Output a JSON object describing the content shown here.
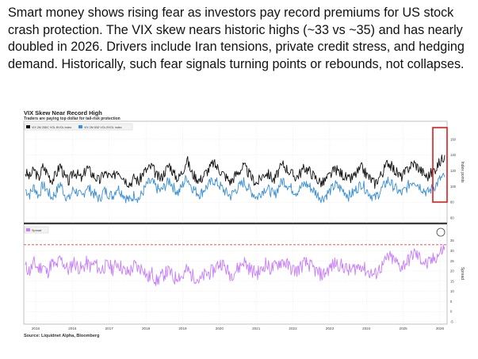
{
  "caption": "Smart money shows rising fear as investors pay record premiums for US stock crash protection. The VIX skew nears historic highs (~33 vs ~35) and has nearly doubled in 2026. Drivers include Iran tensions, private credit stress, and hedging demand. Historically, such fear signals turning points or rebounds, not collapses.",
  "chart_data": {
    "type": "line",
    "title": "VIX Skew Near Record High",
    "subtitle": "Traders are paying top dollar for tail-risk protection",
    "source": "Source: Liquidnet Alpha, Bloomberg",
    "x_ticks": [
      "2015",
      "2016",
      "2017",
      "2018",
      "2019",
      "2020",
      "2021",
      "2022",
      "2023",
      "2024",
      "2025",
      "2026"
    ],
    "top_panel": {
      "ylabel": "Index points",
      "ylim": [
        55,
        170
      ],
      "y_ticks": [
        "160",
        "140",
        "120",
        "100",
        "80",
        "60"
      ],
      "series": [
        {
          "name": "VIX 2M 25DC VOL BVOL Index",
          "color": "#111111",
          "values": [
            118,
            112,
            122,
            110,
            125,
            118,
            108,
            115,
            128,
            112,
            106,
            120,
            115,
            109,
            125,
            118,
            112,
            107,
            118,
            114,
            110,
            122,
            116,
            108,
            104,
            112,
            106,
            118,
            122,
            126,
            114,
            110,
            120,
            128,
            116,
            110,
            120,
            135,
            118,
            112,
            108,
            116,
            122,
            130,
            124,
            118,
            112,
            106,
            114,
            120,
            126,
            118,
            110,
            104,
            112,
            118,
            114,
            108,
            120,
            128,
            122,
            116,
            112,
            118,
            124,
            120,
            114,
            108,
            104,
            110,
            116,
            122,
            118,
            114,
            108,
            112,
            118,
            124,
            116,
            110,
            104,
            112,
            120,
            132,
            124,
            118,
            112,
            118,
            126,
            130,
            124,
            118,
            112,
            118,
            124,
            132,
            140
          ]
        },
        {
          "name": "VIX 2M 50D VOL BVOL Index",
          "color": "#3a8fd6",
          "values": [
            96,
            90,
            100,
            88,
            102,
            95,
            86,
            92,
            104,
            90,
            84,
            97,
            92,
            86,
            100,
            95,
            89,
            84,
            95,
            91,
            88,
            99,
            93,
            86,
            82,
            90,
            84,
            94,
            104,
            106,
            98,
            94,
            101,
            108,
            98,
            92,
            102,
            112,
            100,
            94,
            90,
            97,
            102,
            108,
            104,
            98,
            92,
            88,
            95,
            100,
            106,
            98,
            92,
            86,
            93,
            98,
            95,
            88,
            100,
            108,
            102,
            97,
            93,
            98,
            104,
            100,
            95,
            89,
            85,
            90,
            96,
            102,
            98,
            94,
            88,
            92,
            98,
            104,
            96,
            90,
            85,
            92,
            100,
            108,
            102,
            96,
            91,
            96,
            104,
            108,
            102,
            97,
            92,
            97,
            102,
            110,
            112
          ]
        }
      ]
    },
    "bottom_panel": {
      "ylabel": "Spread",
      "ylim": [
        -5,
        38
      ],
      "y_ticks": [
        "35",
        "30",
        "25",
        "20",
        "15",
        "10",
        "5",
        "0",
        "-5"
      ],
      "reference_line": 33,
      "series": [
        {
          "name": "Spread",
          "color": "#c77dff",
          "values": [
            22,
            20,
            24,
            21,
            23,
            19,
            24,
            22,
            26,
            23,
            20,
            25,
            22,
            21,
            24,
            22,
            24,
            20,
            22,
            23,
            21,
            24,
            22,
            19,
            20,
            23,
            21,
            22,
            16,
            19,
            15,
            17,
            19,
            20,
            16,
            18,
            17,
            21,
            18,
            17,
            15,
            18,
            19,
            20,
            23,
            24,
            21,
            18,
            20,
            22,
            25,
            22,
            20,
            19,
            20,
            24,
            21,
            22,
            24,
            25,
            23,
            21,
            20,
            22,
            24,
            23,
            21,
            19,
            18,
            20,
            22,
            24,
            23,
            22,
            20,
            21,
            22,
            23,
            20,
            19,
            18,
            21,
            23,
            27,
            26,
            24,
            22,
            24,
            26,
            29,
            27,
            25,
            23,
            25,
            27,
            29,
            32
          ]
        }
      ]
    }
  }
}
